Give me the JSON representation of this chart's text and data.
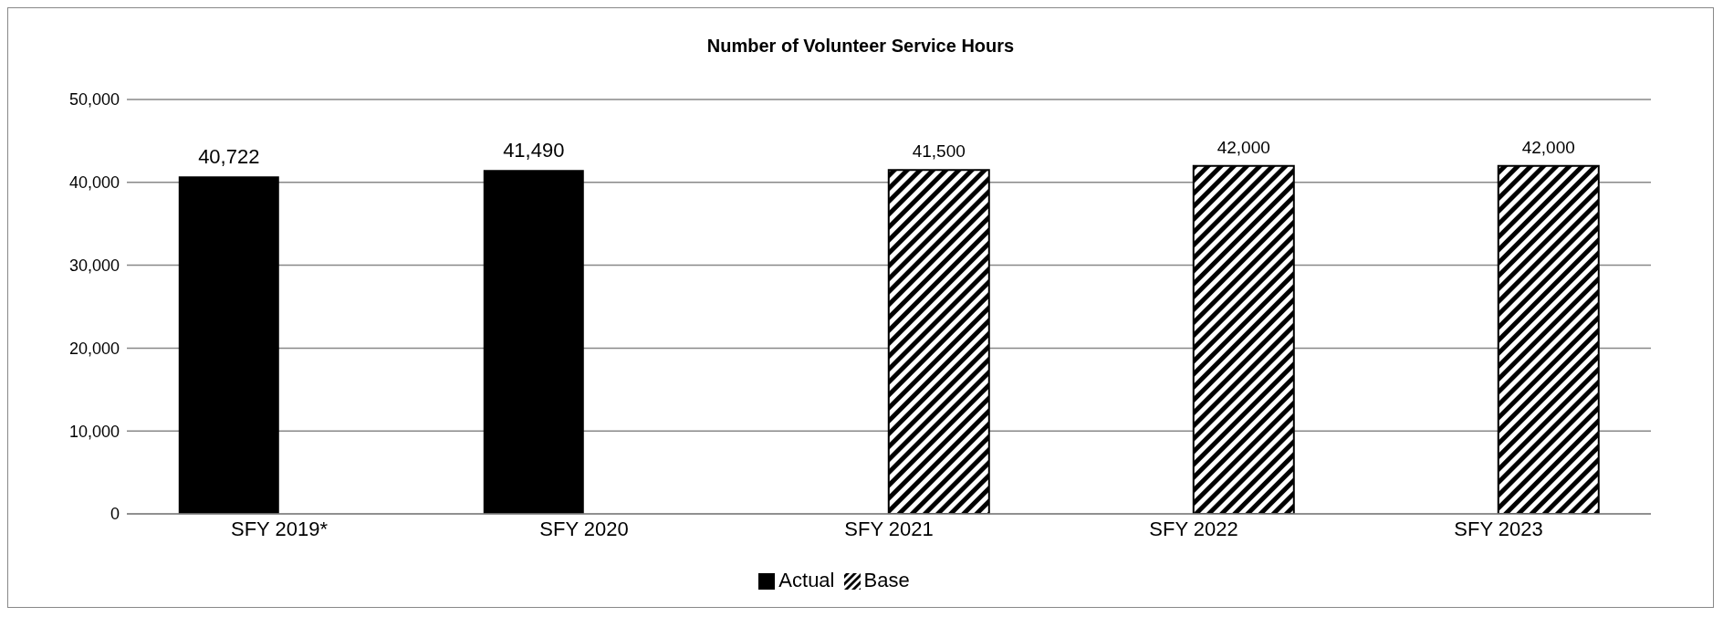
{
  "chart_data": {
    "type": "bar",
    "title": "Number of Volunteer Service Hours",
    "categories": [
      "SFY 2019*",
      "SFY 2020",
      "SFY 2021",
      "SFY 2022",
      "SFY 2023"
    ],
    "series": [
      {
        "name": "Actual",
        "color": "#000000",
        "values": [
          40722,
          41490,
          null,
          null,
          null
        ],
        "value_labels": [
          "40,722",
          "41,490",
          null,
          null,
          null
        ]
      },
      {
        "name": "Base",
        "color": "#000000",
        "values": [
          null,
          null,
          41500,
          42000,
          42000
        ],
        "value_labels": [
          null,
          null,
          "41,500",
          "42,000",
          "42,000"
        ]
      }
    ],
    "ylim": [
      0,
      50000
    ],
    "yticks": [
      {
        "value": 0,
        "label": "0"
      },
      {
        "value": 10000,
        "label": "10,000"
      },
      {
        "value": 20000,
        "label": "20,000"
      },
      {
        "value": 30000,
        "label": "30,000"
      },
      {
        "value": 40000,
        "label": "40,000"
      },
      {
        "value": 50000,
        "label": "50,000"
      }
    ],
    "grid": "y",
    "legend": "bottom"
  }
}
